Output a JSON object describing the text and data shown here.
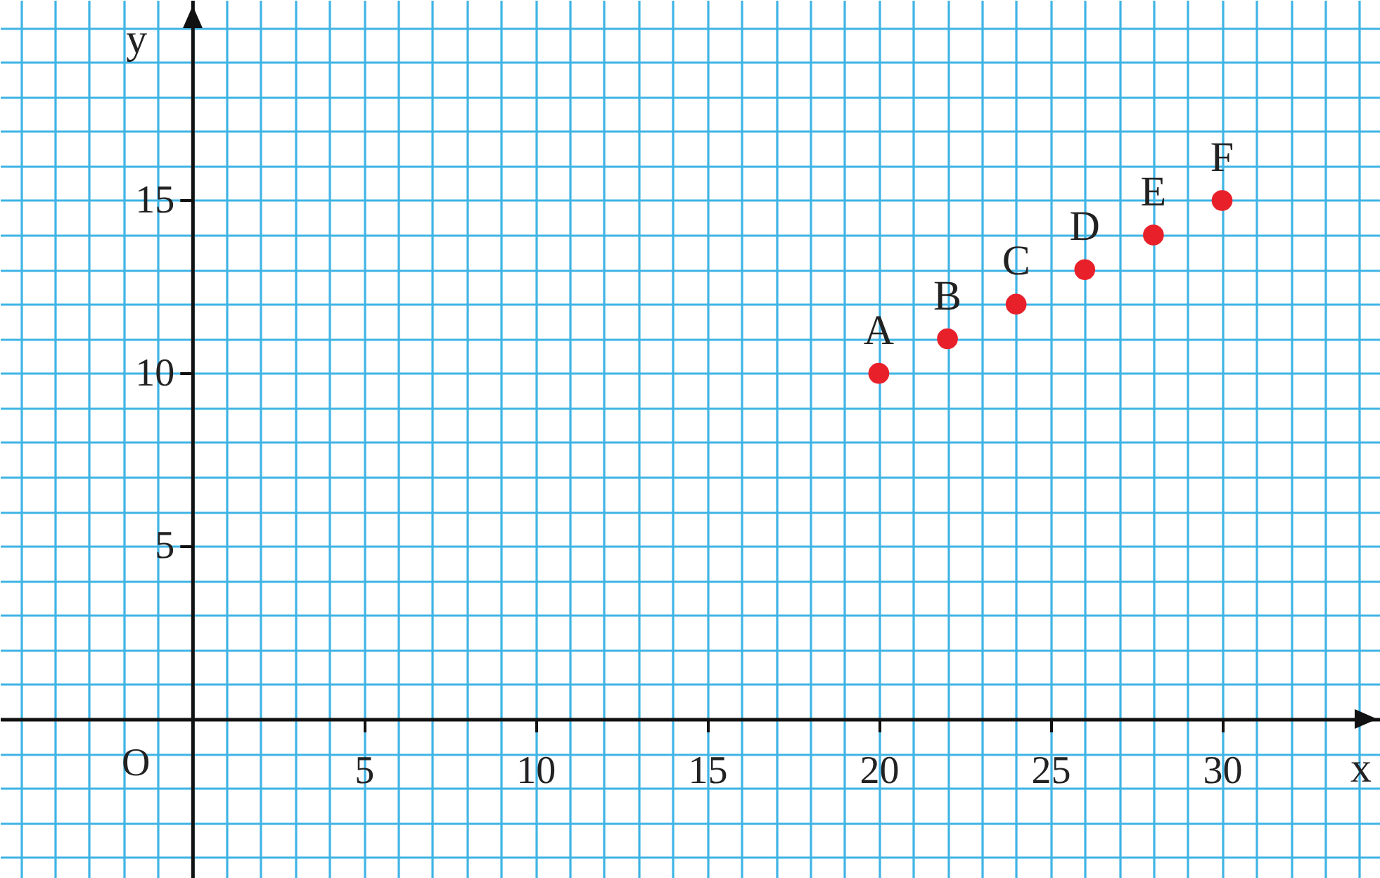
{
  "chart_data": {
    "type": "scatter",
    "xlabel": "x",
    "ylabel": "y",
    "x": [
      20,
      22,
      24,
      26,
      28,
      30
    ],
    "series": [
      {
        "color": "#e8202a",
        "values": [
          10,
          11,
          12,
          13,
          14,
          15
        ]
      }
    ],
    "value_labels": [
      "A",
      "B",
      "C",
      "D",
      "E",
      "F"
    ],
    "annotations": [
      "O"
    ],
    "xlim": [
      -5.6,
      34.6
    ],
    "ylim": [
      -4.6,
      20.8
    ],
    "xticks": [
      5,
      10,
      15,
      20,
      25,
      30
    ],
    "yticks": [
      5,
      10,
      15
    ],
    "grid": true,
    "marker": "circle"
  }
}
